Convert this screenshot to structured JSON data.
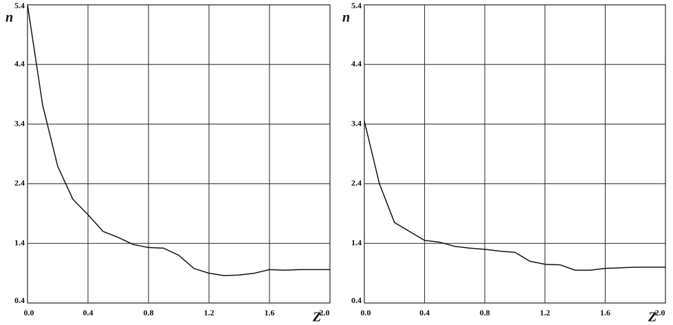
{
  "chart_data": [
    {
      "type": "line",
      "x_label": "Z",
      "y_label": "n",
      "x": [
        0,
        0.1,
        0.2,
        0.3,
        0.4,
        0.5,
        0.6,
        0.7,
        0.8,
        0.9,
        1.0,
        1.1,
        1.2,
        1.3,
        1.4,
        1.5,
        1.6,
        1.7,
        1.8,
        1.9,
        2.0
      ],
      "series": [
        {
          "color": "#111111",
          "values": [
            5.4,
            3.72,
            2.69,
            2.14,
            1.88,
            1.6,
            1.5,
            1.38,
            1.33,
            1.32,
            1.2,
            0.98,
            0.9,
            0.86,
            0.87,
            0.9,
            0.96,
            0.95,
            0.96,
            0.96,
            0.96
          ]
        }
      ],
      "xlim": [
        0,
        2.0
      ],
      "ylim": [
        0.4,
        5.4
      ],
      "xticks": [
        {
          "value": 0,
          "label": "0.0"
        },
        0.4,
        0.8,
        1.2,
        1.6,
        {
          "value": 2,
          "label": "2.0"
        }
      ],
      "yticks": [
        0.4,
        1.4,
        2.4,
        3.4,
        4.4,
        5.4
      ],
      "grid": true
    },
    {
      "type": "line",
      "x_label": "Z",
      "y_label": "n",
      "x": [
        0,
        0.1,
        0.2,
        0.3,
        0.4,
        0.5,
        0.6,
        0.7,
        0.8,
        0.9,
        1.0,
        1.1,
        1.2,
        1.3,
        1.4,
        1.5,
        1.6,
        1.7,
        1.8,
        1.9,
        2.0
      ],
      "series": [
        {
          "color": "#111111",
          "values": [
            3.45,
            2.4,
            1.75,
            1.6,
            1.45,
            1.42,
            1.35,
            1.32,
            1.3,
            1.27,
            1.25,
            1.1,
            1.05,
            1.04,
            0.95,
            0.95,
            0.98,
            0.99,
            1.0,
            1.0,
            1.0
          ]
        }
      ],
      "xlim": [
        0,
        2.0
      ],
      "ylim": [
        0.4,
        5.4
      ],
      "xticks": [
        {
          "value": 0,
          "label": "0.0"
        },
        0.4,
        0.8,
        1.2,
        1.6,
        {
          "value": 2,
          "label": "2.0"
        }
      ],
      "yticks": [
        0.4,
        1.4,
        2.4,
        3.4,
        4.4,
        5.4
      ],
      "grid": true
    }
  ]
}
